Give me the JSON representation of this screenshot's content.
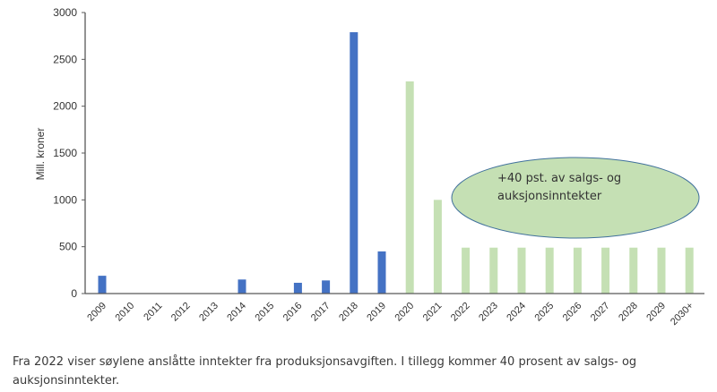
{
  "chart_data": {
    "type": "bar",
    "title": "",
    "xlabel": "",
    "ylabel": "Mill. kroner",
    "ylim": [
      0,
      3000
    ],
    "yticks": [
      0,
      500,
      1000,
      1500,
      2000,
      2500,
      3000
    ],
    "grid": false,
    "categories": [
      "2009",
      "2010",
      "2011",
      "2012",
      "2013",
      "2014",
      "2015",
      "2016",
      "2017",
      "2018",
      "2019",
      "2020",
      "2021",
      "2022",
      "2023",
      "2024",
      "2025",
      "2026",
      "2027",
      "2028",
      "2029",
      "2030+"
    ],
    "values": [
      190,
      0,
      0,
      0,
      0,
      150,
      0,
      115,
      140,
      2790,
      450,
      2265,
      1000,
      490,
      490,
      490,
      490,
      490,
      490,
      490,
      490,
      490
    ],
    "bar_colors": {
      "historical": "#4472c4",
      "estimated": "#c5e0b4"
    },
    "estimated_from": "2020",
    "annotation": {
      "lines": [
        "+40 pst. av salgs- og",
        "auksjonsinntekter"
      ],
      "fill": "#c5e0b4",
      "stroke": "#41719c"
    }
  },
  "caption": "Fra 2022 viser søylene anslåtte inntekter fra produksjonsavgiften. I tillegg kommer 40 prosent av salgs- og auksjonsinntekter."
}
